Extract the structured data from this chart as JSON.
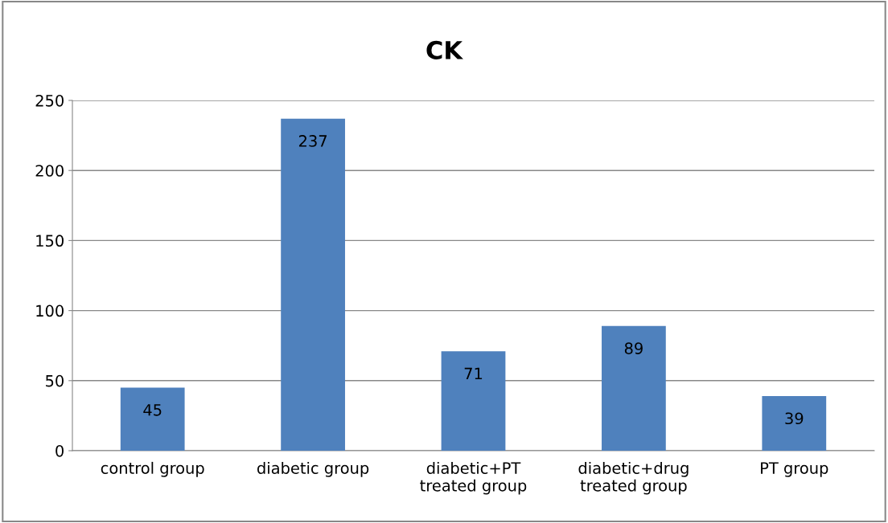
{
  "chart_data": {
    "type": "bar",
    "title": "CK",
    "categories": [
      "control group",
      "diabetic group",
      "diabetic+PT\ntreated group",
      "diabetic+drug\ntreated group",
      "PT group"
    ],
    "values": [
      45,
      237,
      71,
      89,
      39
    ],
    "color": "#4f81bd",
    "ylim": [
      0,
      250
    ],
    "yticks": [
      0,
      50,
      100,
      150,
      200,
      250
    ],
    "grid": "y",
    "data_labels": true
  }
}
